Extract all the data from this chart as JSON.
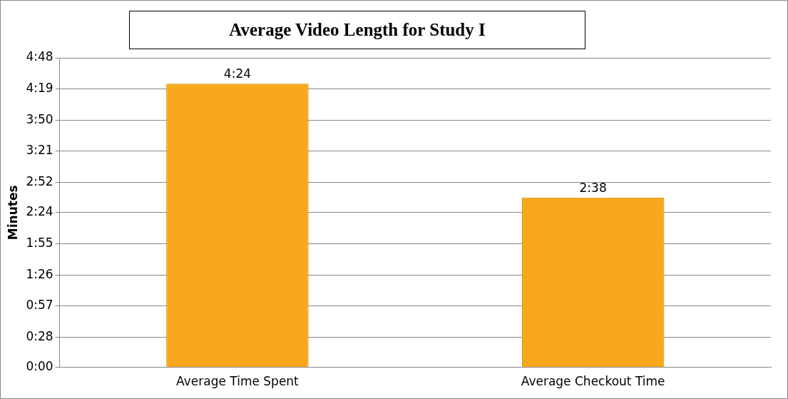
{
  "chart_data": {
    "type": "bar",
    "title": "Average Video Length for Study I",
    "ylabel": "Minutes",
    "categories": [
      "Average Time Spent",
      "Average Checkout Time"
    ],
    "values": [
      264,
      158
    ],
    "value_labels": [
      "4:24",
      "2:38"
    ],
    "color": "#f7a81b",
    "ylim": [
      0,
      288
    ],
    "yticks": [
      {
        "value": 0,
        "label": "0:00"
      },
      {
        "value": 28,
        "label": "0:28"
      },
      {
        "value": 57,
        "label": "0:57"
      },
      {
        "value": 86,
        "label": "1:26"
      },
      {
        "value": 115,
        "label": "1:55"
      },
      {
        "value": 144,
        "label": "2:24"
      },
      {
        "value": 172,
        "label": "2:52"
      },
      {
        "value": 201,
        "label": "3:21"
      },
      {
        "value": 230,
        "label": "3:50"
      },
      {
        "value": 259,
        "label": "4:19"
      },
      {
        "value": 288,
        "label": "4:48"
      }
    ],
    "grid": "y"
  }
}
